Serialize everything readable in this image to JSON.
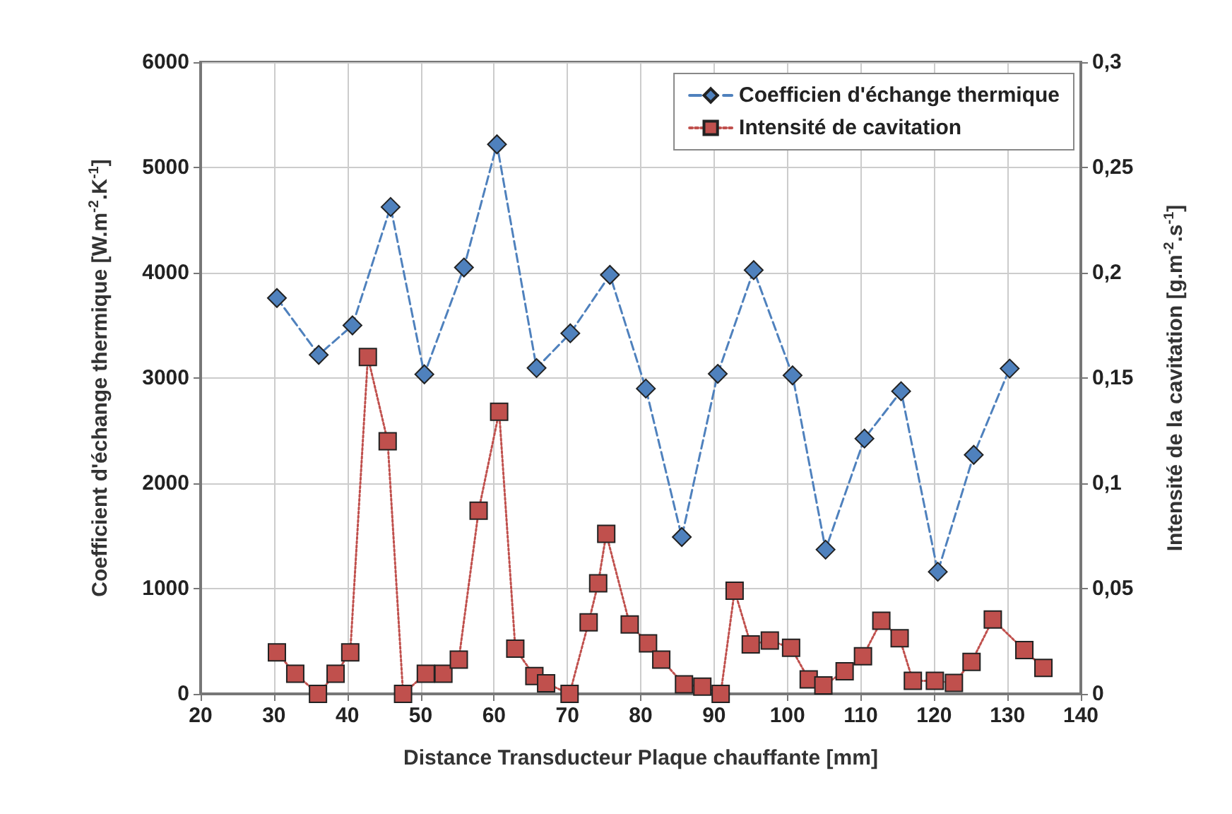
{
  "chart_data": {
    "type": "line",
    "xlabel": "Distance Transducteur Plaque chauffante [mm]",
    "ylabel": "Coefficient d'échange thermique [W.m$^{-2}$.K$^{-1}$]",
    "y2label": "Intensité de la cavitation [g.m$^{-2}$.s$^{-1}$]",
    "series": [
      {
        "name": "Coefficien d'échange thermique",
        "color": "#4f81bd",
        "marker": "diamond",
        "line_style": "dashed",
        "x": [
          30.4,
          36.1,
          40.7,
          45.9,
          50.5,
          55.9,
          60.4,
          65.8,
          70.4,
          75.8,
          80.7,
          85.6,
          90.5,
          95.4,
          100.7,
          105.2,
          110.5,
          115.5,
          120.5,
          125.4,
          130.3
        ],
        "values": [
          3760,
          3220,
          3500,
          4625,
          3035,
          4050,
          5220,
          3095,
          3425,
          3980,
          2900,
          1490,
          3040,
          4025,
          3025,
          1370,
          2425,
          2875,
          1160,
          2270,
          3090
        ]
      },
      {
        "name": "Intensité de cavitation",
        "color": "#c0504d",
        "marker": "square",
        "line_style": "dotted",
        "axis": "y2",
        "x": [
          30.4,
          32.9,
          36.0,
          38.4,
          40.4,
          42.8,
          45.5,
          47.6,
          50.7,
          53.1,
          55.2,
          57.9,
          60.7,
          62.9,
          65.5,
          67.1,
          70.3,
          72.9,
          74.2,
          75.3,
          78.5,
          81.0,
          82.8,
          85.9,
          88.4,
          90.9,
          92.8,
          95.0,
          97.6,
          100.5,
          102.9,
          104.9,
          107.8,
          110.3,
          112.8,
          115.3,
          117.1,
          120.1,
          122.7,
          125.1,
          128.0,
          132.3,
          134.9
        ],
        "values": [
          0.0197,
          0.0096,
          0,
          0.0096,
          0.0197,
          0.16,
          0.12,
          0,
          0.0096,
          0.0096,
          0.0163,
          0.087,
          0.134,
          0.0215,
          0.0085,
          0.005,
          0,
          0.034,
          0.0525,
          0.076,
          0.033,
          0.024,
          0.0163,
          0.0045,
          0.0034,
          0,
          0.049,
          0.0235,
          0.0253,
          0.0219,
          0.0069,
          0.004,
          0.0107,
          0.0179,
          0.0347,
          0.0264,
          0.0062,
          0.0062,
          0.0052,
          0.0152,
          0.0353,
          0.0208,
          0.0123
        ]
      }
    ],
    "xlim": [
      20,
      140
    ],
    "xticks": [
      20,
      30,
      40,
      50,
      60,
      70,
      80,
      90,
      100,
      110,
      120,
      130,
      140
    ],
    "ylim": [
      0,
      6000
    ],
    "yticks": [
      0,
      1000,
      2000,
      3000,
      4000,
      5000,
      6000
    ],
    "y2lim": [
      0,
      0.3
    ],
    "y2ticks": [
      {
        "value": 0,
        "label": "0"
      },
      {
        "value": 0.05,
        "label": "0,05"
      },
      {
        "value": 0.1,
        "label": "0,1"
      },
      {
        "value": 0.15,
        "label": "0,15"
      },
      {
        "value": 0.2,
        "label": "0,2"
      },
      {
        "value": 0.25,
        "label": "0,25"
      },
      {
        "value": 0.3,
        "label": "0,3"
      }
    ],
    "grid": true,
    "legend": "top right"
  }
}
